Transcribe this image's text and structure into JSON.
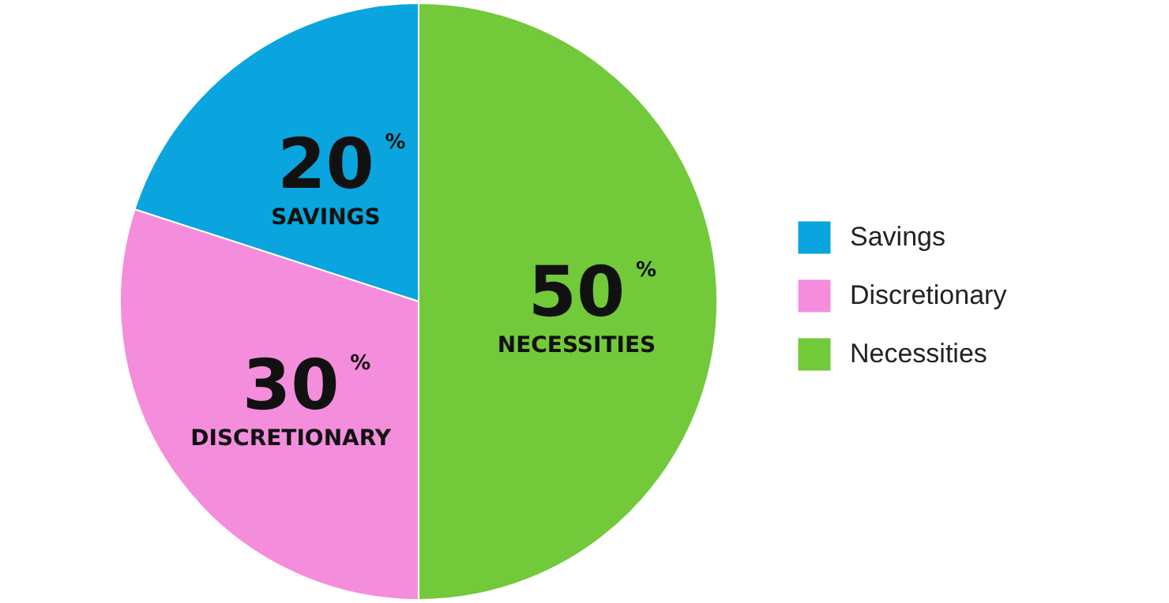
{
  "chart_data": {
    "type": "pie",
    "categories": [
      "Savings",
      "Discretionary",
      "Necessities"
    ],
    "values": [
      20,
      30,
      50
    ],
    "colors": [
      "#0aa5de",
      "#f48ddc",
      "#72c93a"
    ],
    "value_labels": [
      "20$^{%}$\nSAVINGS",
      "30$^{%}$\nDISCRETIONARY",
      "50$^{%}$\nNECESSITIES"
    ],
    "legend": "right"
  }
}
